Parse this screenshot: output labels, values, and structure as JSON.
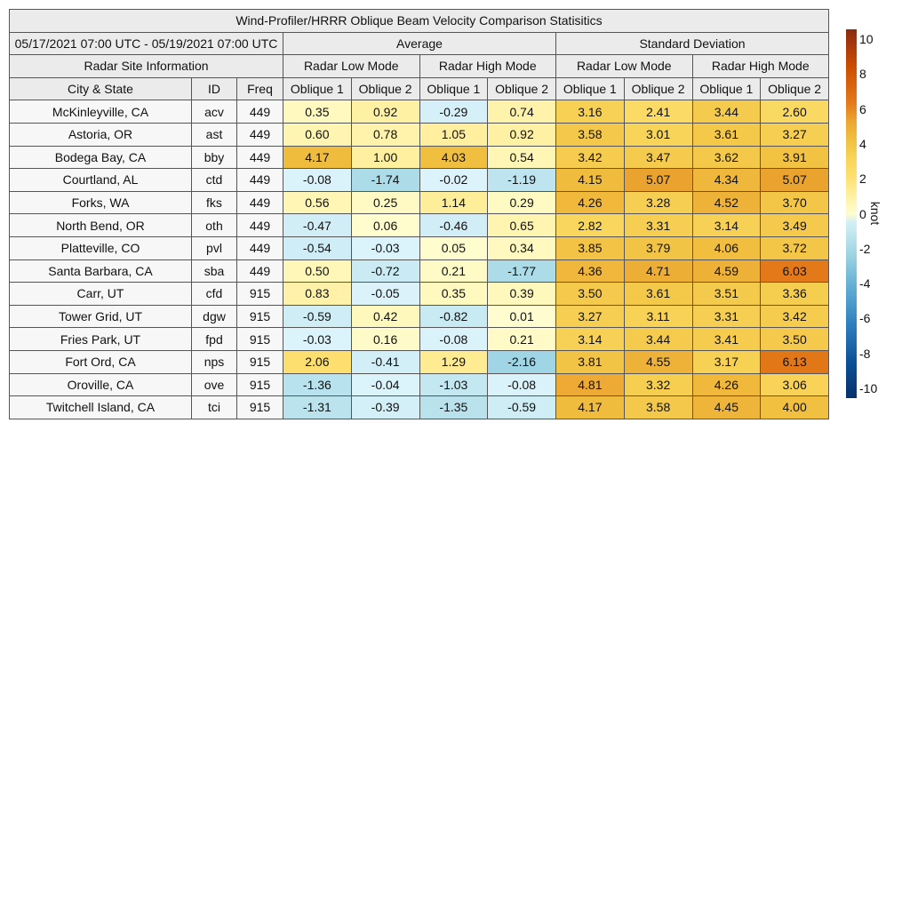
{
  "chart_data": {
    "type": "table",
    "title": "Wind-Profiler/HRRR Oblique Beam Velocity Comparison Statisitics",
    "date_range": "05/17/2021 07:00 UTC - 05/19/2021 07:00 UTC",
    "site_info_label": "Radar Site Information",
    "groups": [
      "Average",
      "Standard Deviation"
    ],
    "modes": [
      "Radar Low Mode",
      "Radar High Mode",
      "Radar Low Mode",
      "Radar High Mode"
    ],
    "columns": [
      "City & State",
      "ID",
      "Freq",
      "Oblique 1",
      "Oblique 2",
      "Oblique 1",
      "Oblique 2",
      "Oblique 1",
      "Oblique 2",
      "Oblique 1",
      "Oblique 2"
    ],
    "rows": [
      [
        "McKinleyville, CA",
        "acv",
        "449",
        "0.35",
        "0.92",
        "-0.29",
        "0.74",
        "3.16",
        "2.41",
        "3.44",
        "2.60"
      ],
      [
        "Astoria, OR",
        "ast",
        "449",
        "0.60",
        "0.78",
        "1.05",
        "0.92",
        "3.58",
        "3.01",
        "3.61",
        "3.27"
      ],
      [
        "Bodega Bay, CA",
        "bby",
        "449",
        "4.17",
        "1.00",
        "4.03",
        "0.54",
        "3.42",
        "3.47",
        "3.62",
        "3.91"
      ],
      [
        "Courtland, AL",
        "ctd",
        "449",
        "-0.08",
        "-1.74",
        "-0.02",
        "-1.19",
        "4.15",
        "5.07",
        "4.34",
        "5.07"
      ],
      [
        "Forks, WA",
        "fks",
        "449",
        "0.56",
        "0.25",
        "1.14",
        "0.29",
        "4.26",
        "3.28",
        "4.52",
        "3.70"
      ],
      [
        "North Bend, OR",
        "oth",
        "449",
        "-0.47",
        "0.06",
        "-0.46",
        "0.65",
        "2.82",
        "3.31",
        "3.14",
        "3.49"
      ],
      [
        "Platteville, CO",
        "pvl",
        "449",
        "-0.54",
        "-0.03",
        "0.05",
        "0.34",
        "3.85",
        "3.79",
        "4.06",
        "3.72"
      ],
      [
        "Santa Barbara, CA",
        "sba",
        "449",
        "0.50",
        "-0.72",
        "0.21",
        "-1.77",
        "4.36",
        "4.71",
        "4.59",
        "6.03"
      ],
      [
        "Carr, UT",
        "cfd",
        "915",
        "0.83",
        "-0.05",
        "0.35",
        "0.39",
        "3.50",
        "3.61",
        "3.51",
        "3.36"
      ],
      [
        "Tower Grid, UT",
        "dgw",
        "915",
        "-0.59",
        "0.42",
        "-0.82",
        "0.01",
        "3.27",
        "3.11",
        "3.31",
        "3.42"
      ],
      [
        "Fries Park, UT",
        "fpd",
        "915",
        "-0.03",
        "0.16",
        "-0.08",
        "0.21",
        "3.14",
        "3.44",
        "3.41",
        "3.50"
      ],
      [
        "Fort Ord, CA",
        "nps",
        "915",
        "2.06",
        "-0.41",
        "1.29",
        "-2.16",
        "3.81",
        "4.55",
        "3.17",
        "6.13"
      ],
      [
        "Oroville, CA",
        "ove",
        "915",
        "-1.36",
        "-0.04",
        "-1.03",
        "-0.08",
        "4.81",
        "3.32",
        "4.26",
        "3.06"
      ],
      [
        "Twitchell Island, CA",
        "tci",
        "915",
        "-1.31",
        "-0.39",
        "-1.35",
        "-0.59",
        "4.17",
        "3.58",
        "4.45",
        "4.00"
      ]
    ],
    "colorbar": {
      "label": "knot",
      "range": [
        -10,
        10
      ],
      "ticks": [
        "10",
        "8",
        "6",
        "4",
        "2",
        "0",
        "-2",
        "-4",
        "-6",
        "-8",
        "-10"
      ]
    }
  }
}
